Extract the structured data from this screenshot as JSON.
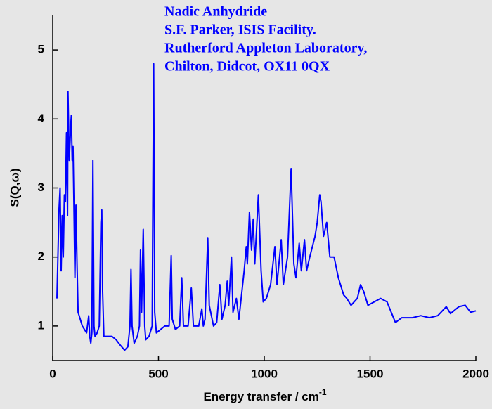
{
  "chart_data": {
    "type": "line",
    "annotation": [
      "Nadic Anhydride",
      "S.F. Parker, ISIS Facility.",
      "Rutherford Appleton Laboratory,",
      "Chilton, Didcot, OX11 0QX"
    ],
    "xlabel": "Energy transfer / cm",
    "xlabel_superscript": "-1",
    "ylabel": "S(Q,ω)",
    "xlim": [
      0,
      2000
    ],
    "xticks": [
      0,
      500,
      1000,
      1500,
      2000
    ],
    "ylim": [
      0.5,
      5.5
    ],
    "yticks": [
      1,
      2,
      3,
      4,
      5
    ],
    "grid": false,
    "series": [
      {
        "color": "#0000ff",
        "x": [
          20,
          30,
          35,
          40,
          45,
          50,
          55,
          60,
          65,
          70,
          72,
          78,
          85,
          88,
          92,
          96,
          100,
          105,
          110,
          115,
          120,
          130,
          140,
          150,
          160,
          170,
          175,
          180,
          185,
          190,
          195,
          200,
          210,
          220,
          228,
          232,
          236,
          242,
          260,
          280,
          300,
          320,
          340,
          355,
          365,
          370,
          375,
          385,
          400,
          410,
          415,
          420,
          428,
          435,
          440,
          455,
          470,
          477,
          482,
          490,
          510,
          530,
          550,
          560,
          565,
          580,
          600,
          610,
          618,
          640,
          655,
          665,
          690,
          705,
          712,
          720,
          733,
          740,
          760,
          775,
          790,
          800,
          815,
          825,
          832,
          845,
          852,
          868,
          880,
          905,
          915,
          920,
          930,
          940,
          948,
          955,
          972,
          985,
          995,
          1010,
          1030,
          1050,
          1060,
          1080,
          1090,
          1110,
          1127,
          1140,
          1150,
          1165,
          1175,
          1190,
          1200,
          1215,
          1240,
          1250,
          1262,
          1268,
          1280,
          1295,
          1310,
          1330,
          1350,
          1375,
          1390,
          1410,
          1440,
          1455,
          1470,
          1490,
          1520,
          1550,
          1580,
          1600,
          1620,
          1650,
          1700,
          1740,
          1780,
          1820,
          1860,
          1880,
          1920,
          1950,
          1975,
          2000
        ],
        "values": [
          1.4,
          2.7,
          3.0,
          1.8,
          2.6,
          2.0,
          2.9,
          2.8,
          3.8,
          2.6,
          4.4,
          3.4,
          3.9,
          4.05,
          3.4,
          3.6,
          2.8,
          1.7,
          2.75,
          1.9,
          1.2,
          1.1,
          1.0,
          0.95,
          0.9,
          1.15,
          0.85,
          0.75,
          0.9,
          3.4,
          1.0,
          0.85,
          0.9,
          1.0,
          2.5,
          2.68,
          1.5,
          0.85,
          0.85,
          0.85,
          0.8,
          0.72,
          0.65,
          0.7,
          1.0,
          1.82,
          1.0,
          0.75,
          0.85,
          1.0,
          2.1,
          1.2,
          2.4,
          1.0,
          0.8,
          0.85,
          1.0,
          4.8,
          1.2,
          0.9,
          0.95,
          1.0,
          1.0,
          2.02,
          1.1,
          0.95,
          1.0,
          1.7,
          1.0,
          1.0,
          1.55,
          1.0,
          1.0,
          1.25,
          1.0,
          1.1,
          2.28,
          1.3,
          1.0,
          1.05,
          1.6,
          1.1,
          1.3,
          1.65,
          1.3,
          2.0,
          1.2,
          1.4,
          1.1,
          1.8,
          2.15,
          1.9,
          2.65,
          2.1,
          2.55,
          1.9,
          2.9,
          1.8,
          1.35,
          1.4,
          1.6,
          2.15,
          1.6,
          2.25,
          1.6,
          2.0,
          3.28,
          1.9,
          1.7,
          2.2,
          1.8,
          2.25,
          1.8,
          2.0,
          2.3,
          2.5,
          2.9,
          2.8,
          2.3,
          2.5,
          2.0,
          2.0,
          1.7,
          1.45,
          1.4,
          1.3,
          1.4,
          1.6,
          1.5,
          1.3,
          1.35,
          1.4,
          1.35,
          1.2,
          1.05,
          1.12,
          1.12,
          1.15,
          1.12,
          1.15,
          1.28,
          1.18,
          1.28,
          1.3,
          1.2,
          1.22
        ]
      }
    ]
  }
}
